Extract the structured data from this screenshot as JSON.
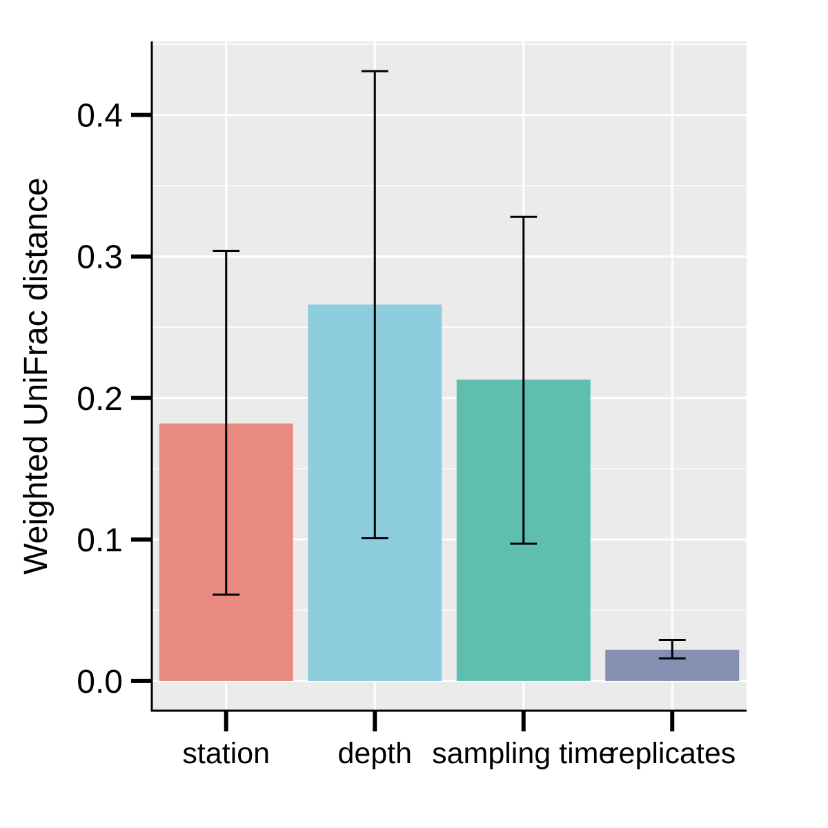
{
  "chart_data": {
    "type": "bar",
    "title": "",
    "xlabel": "",
    "ylabel": "Weighted UniFrac distance",
    "categories": [
      "station",
      "depth",
      "sampling time",
      "replicates"
    ],
    "values": [
      0.182,
      0.266,
      0.213,
      0.022
    ],
    "error_low": [
      0.061,
      0.101,
      0.097,
      0.016
    ],
    "error_high": [
      0.304,
      0.431,
      0.328,
      0.029
    ],
    "ylim": [
      -0.021,
      0.452
    ],
    "yticks": [
      0.0,
      0.1,
      0.2,
      0.3,
      0.4
    ],
    "ytick_labels": [
      "0.0",
      "0.1",
      "0.2",
      "0.3",
      "0.4"
    ],
    "grid": true,
    "legend": "none",
    "colors": {
      "bars": [
        "#E88A80",
        "#8ECDDE",
        "#5EBFB0",
        "#8490B2"
      ],
      "panel_background": "#EBEBEB",
      "grid": "#FFFFFF",
      "error_bar": "#000000"
    }
  }
}
